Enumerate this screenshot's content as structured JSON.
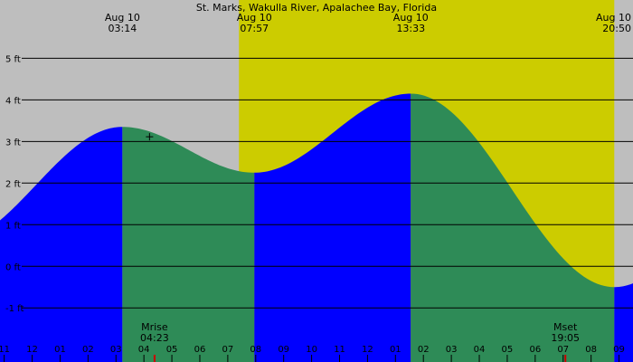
{
  "chart_data": {
    "type": "area",
    "title": "St. Marks, Wakulla River, Apalachee Bay, Florida",
    "y_unit": "ft",
    "ylim": [
      -2.3,
      6.4
    ],
    "y_ticks": [
      -1,
      0,
      1,
      2,
      3,
      4,
      5
    ],
    "y_tick_labels": [
      "-1 ft",
      "0 ft",
      "1 ft",
      "2 ft",
      "3 ft",
      "4 ft",
      "5 ft"
    ],
    "x_range_hours": [
      -1.15,
      21.5
    ],
    "x_ticks": [
      -1,
      0,
      1,
      2,
      3,
      4,
      5,
      6,
      7,
      8,
      9,
      10,
      11,
      12,
      13,
      14,
      15,
      16,
      17,
      18,
      19,
      20,
      21
    ],
    "x_tick_labels": [
      "11",
      "12",
      "01",
      "02",
      "03",
      "04",
      "05",
      "06",
      "07",
      "08",
      "09",
      "10",
      "11",
      "12",
      "01",
      "02",
      "03",
      "04",
      "05",
      "06",
      "07",
      "08",
      "09"
    ],
    "daylight": {
      "sunrise_hour": 7.4,
      "sunset_hour": 20.83
    },
    "colors": {
      "night": "#bebebe",
      "day": "#cccc00",
      "rising": "#0000ff",
      "falling": "#2e8b57",
      "moon_marker": "#cc0000"
    },
    "tide_events": [
      {
        "date": "Aug 10",
        "time": "03:14",
        "hour": 3.23,
        "height": 3.35,
        "kind": "high"
      },
      {
        "date": "Aug 10",
        "time": "07:57",
        "hour": 7.95,
        "height": 2.25,
        "kind": "low"
      },
      {
        "date": "Aug 10",
        "time": "13:33",
        "hour": 13.55,
        "height": 4.15,
        "kind": "high"
      },
      {
        "date": "Aug 10",
        "time": "20:50",
        "hour": 20.83,
        "height": -0.5,
        "kind": "low"
      }
    ],
    "tide_start": {
      "hour": -1.15,
      "height": 1.2
    },
    "tide_end": {
      "hour": 21.5,
      "height": -0.45
    },
    "moon": {
      "rise_label": "Mrise",
      "rise_time": "04:23",
      "rise_hour": 4.38,
      "set_label": "Mset",
      "set_time": "19:05",
      "set_hour": 19.08
    }
  }
}
